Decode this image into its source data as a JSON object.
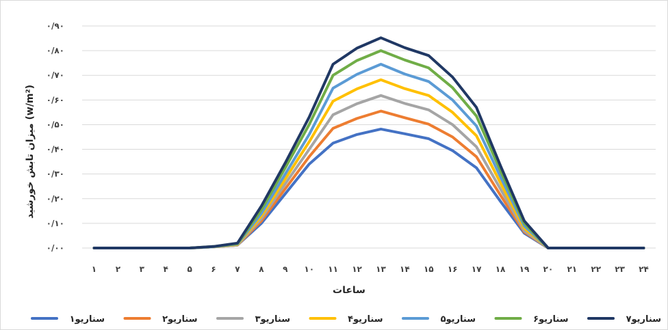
{
  "chart_data": {
    "type": "line",
    "title": "",
    "xlabel": "ساعات",
    "ylabel": "میزان تابش خورشید (w/m²)",
    "ylim": [
      0,
      0.9
    ],
    "y_ticks": [
      0,
      0.1,
      0.2,
      0.3,
      0.4,
      0.5,
      0.6,
      0.7,
      0.8,
      0.9
    ],
    "y_tick_labels": [
      "۰/۰۰",
      "۰/۱۰",
      "۰/۲۰",
      "۰/۳۰",
      "۰/۴۰",
      "۰/۵۰",
      "۰/۶۰",
      "۰/۷۰",
      "۰/۸۰",
      "۰/۹۰"
    ],
    "x": [
      1,
      2,
      3,
      4,
      5,
      6,
      7,
      8,
      9,
      10,
      11,
      12,
      13,
      14,
      15,
      16,
      17,
      18,
      19,
      20,
      21,
      22,
      23,
      24
    ],
    "x_tick_labels": [
      "۱",
      "۲",
      "۳",
      "۴",
      "۵",
      "۶",
      "۷",
      "۸",
      "۹",
      "۱۰",
      "۱۱",
      "۱۲",
      "۱۳",
      "۱۴",
      "۱۵",
      "۱۶",
      "۱۷",
      "۱۸",
      "۱۹",
      "۲۰",
      "۲۱",
      "۲۲",
      "۲۳",
      "۲۴"
    ],
    "grid": true,
    "legend_position": "bottom",
    "series": [
      {
        "name": "سناریو۱",
        "color": "#4472c4",
        "values": [
          0,
          0,
          0,
          0,
          0,
          0.005,
          0.012,
          0.1,
          0.22,
          0.34,
          0.425,
          0.46,
          0.482,
          0.463,
          0.443,
          0.395,
          0.325,
          0.19,
          0.06,
          0,
          0,
          0,
          0,
          0
        ]
      },
      {
        "name": "سناریو۲",
        "color": "#ed7d31",
        "values": [
          0,
          0,
          0,
          0,
          0,
          0.005,
          0.012,
          0.11,
          0.24,
          0.37,
          0.485,
          0.525,
          0.555,
          0.528,
          0.502,
          0.45,
          0.37,
          0.215,
          0.065,
          0,
          0,
          0,
          0,
          0
        ]
      },
      {
        "name": "سناریو۳",
        "color": "#a5a5a5",
        "values": [
          0,
          0,
          0,
          0,
          0,
          0.005,
          0.012,
          0.12,
          0.26,
          0.4,
          0.54,
          0.585,
          0.618,
          0.586,
          0.56,
          0.5,
          0.41,
          0.24,
          0.07,
          0,
          0,
          0,
          0,
          0
        ]
      },
      {
        "name": "سناریو۴",
        "color": "#ffc000",
        "values": [
          0,
          0,
          0,
          0,
          0,
          0.005,
          0.014,
          0.13,
          0.28,
          0.43,
          0.595,
          0.645,
          0.682,
          0.646,
          0.618,
          0.55,
          0.455,
          0.265,
          0.08,
          0,
          0,
          0,
          0,
          0
        ]
      },
      {
        "name": "سناریو۵",
        "color": "#5b9bd5",
        "values": [
          0,
          0,
          0,
          0,
          0,
          0.005,
          0.016,
          0.14,
          0.3,
          0.46,
          0.648,
          0.704,
          0.745,
          0.705,
          0.675,
          0.6,
          0.495,
          0.29,
          0.09,
          0,
          0,
          0,
          0,
          0
        ]
      },
      {
        "name": "سناریو۶",
        "color": "#70ad47",
        "values": [
          0,
          0,
          0,
          0,
          0,
          0.006,
          0.018,
          0.155,
          0.325,
          0.5,
          0.7,
          0.76,
          0.8,
          0.762,
          0.73,
          0.65,
          0.535,
          0.315,
          0.1,
          0,
          0,
          0,
          0,
          0
        ]
      },
      {
        "name": "سناریو۷",
        "color": "#203864",
        "values": [
          0,
          0,
          0,
          0,
          0,
          0.006,
          0.02,
          0.17,
          0.345,
          0.53,
          0.745,
          0.81,
          0.852,
          0.812,
          0.78,
          0.693,
          0.57,
          0.335,
          0.11,
          0,
          0,
          0,
          0,
          0
        ]
      }
    ]
  }
}
